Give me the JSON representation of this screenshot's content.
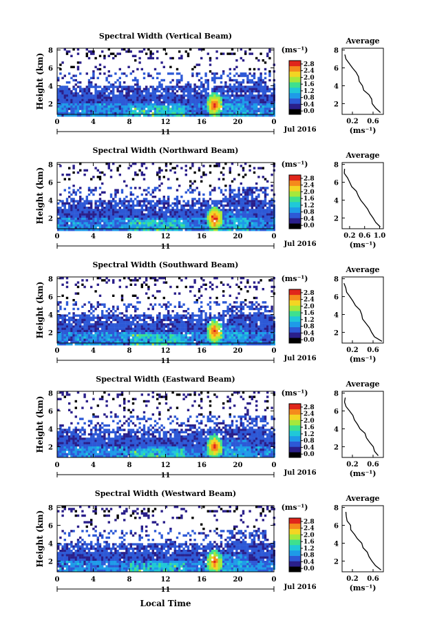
{
  "figure": {
    "xlabel": "Local Time",
    "date_label": "Jul 2016",
    "day_label": "11"
  },
  "colorbar": {
    "unit": "(ms⁻¹)",
    "ticks": [
      "0.0",
      "0.4",
      "0.8",
      "1.2",
      "1.6",
      "2.0",
      "2.4",
      "2.8"
    ],
    "colors": [
      "#000000",
      "#2a1f8a",
      "#2d59d6",
      "#1e9be8",
      "#20c8d8",
      "#3ee08f",
      "#a6e83b",
      "#f3d523",
      "#f58a1c",
      "#e0261b"
    ]
  },
  "chart_data": [
    {
      "type": "heatmap",
      "title": "Spectral Width (Vertical Beam)",
      "ylabel": "Height (km)",
      "x_ticks": [
        "0",
        "4",
        "8",
        "12",
        "16",
        "20",
        "0"
      ],
      "y_ticks": [
        "2",
        "4",
        "6",
        "8"
      ],
      "xlim": [
        0,
        24
      ],
      "ylim": [
        0.8,
        8.2
      ],
      "clim": [
        0,
        2.8
      ],
      "peak": {
        "x": 17.3,
        "y": 2.0,
        "value": 2.6
      },
      "profile": {
        "title": "Average",
        "xlabel": "(ms⁻¹)",
        "x_ticks": [
          "0.2",
          "0.6"
        ],
        "y_ticks": [
          "2",
          "4",
          "6",
          "8"
        ],
        "xlim": [
          0.0,
          0.8
        ],
        "ylim": [
          0.8,
          8.2
        ],
        "height": [
          1.0,
          1.5,
          2.0,
          2.5,
          3.0,
          3.5,
          4.0,
          4.5,
          5.0,
          5.5,
          6.0,
          6.5,
          7.0,
          7.5
        ],
        "width": [
          0.75,
          0.65,
          0.6,
          0.55,
          0.5,
          0.44,
          0.4,
          0.35,
          0.3,
          0.25,
          0.18,
          0.12,
          0.08,
          0.05
        ]
      }
    },
    {
      "type": "heatmap",
      "title": "Spectral Width (Northward Beam)",
      "ylabel": "Height (km)",
      "x_ticks": [
        "0",
        "4",
        "8",
        "12",
        "16",
        "20",
        "0"
      ],
      "y_ticks": [
        "2",
        "4",
        "6",
        "8"
      ],
      "xlim": [
        0,
        24
      ],
      "ylim": [
        0.8,
        8.2
      ],
      "clim": [
        0,
        2.8
      ],
      "peak": {
        "x": 17.3,
        "y": 2.0,
        "value": 2.7
      },
      "profile": {
        "title": "Average",
        "xlabel": "(ms⁻¹)",
        "x_ticks": [
          "0.2",
          "0.6",
          "1.0"
        ],
        "y_ticks": [
          "2",
          "4",
          "6",
          "8"
        ],
        "xlim": [
          0.0,
          1.1
        ],
        "ylim": [
          0.8,
          8.2
        ],
        "height": [
          1.0,
          1.5,
          2.0,
          2.5,
          3.0,
          3.5,
          4.0,
          4.5,
          5.0,
          5.5,
          6.0,
          6.5,
          7.0,
          7.5
        ],
        "width": [
          1.0,
          0.92,
          0.82,
          0.74,
          0.68,
          0.6,
          0.52,
          0.45,
          0.38,
          0.28,
          0.2,
          0.14,
          0.08,
          0.05
        ]
      }
    },
    {
      "type": "heatmap",
      "title": "Spectral Width (Southward Beam)",
      "ylabel": "Height (km)",
      "x_ticks": [
        "0",
        "4",
        "8",
        "12",
        "16",
        "20",
        "0"
      ],
      "y_ticks": [
        "2",
        "4",
        "6",
        "8"
      ],
      "xlim": [
        0,
        24
      ],
      "ylim": [
        0.8,
        8.2
      ],
      "clim": [
        0,
        2.8
      ],
      "peak": {
        "x": 17.3,
        "y": 2.2,
        "value": 2.6
      },
      "profile": {
        "title": "Average",
        "xlabel": "(ms⁻¹)",
        "x_ticks": [
          "0.2",
          "0.6"
        ],
        "y_ticks": [
          "2",
          "4",
          "6",
          "8"
        ],
        "xlim": [
          0.0,
          0.8
        ],
        "ylim": [
          0.8,
          8.2
        ],
        "height": [
          1.0,
          1.5,
          2.0,
          2.5,
          3.0,
          3.5,
          4.0,
          4.5,
          5.0,
          5.5,
          6.0,
          6.5,
          7.0,
          7.5
        ],
        "width": [
          0.76,
          0.64,
          0.58,
          0.52,
          0.48,
          0.42,
          0.38,
          0.33,
          0.28,
          0.22,
          0.16,
          0.11,
          0.07,
          0.05
        ]
      }
    },
    {
      "type": "heatmap",
      "title": "Spectral Width (Eastward Beam)",
      "ylabel": "Height (km)",
      "x_ticks": [
        "0",
        "4",
        "8",
        "12",
        "16",
        "20",
        "0"
      ],
      "y_ticks": [
        "2",
        "4",
        "6",
        "8"
      ],
      "xlim": [
        0,
        24
      ],
      "ylim": [
        0.8,
        8.2
      ],
      "clim": [
        0,
        2.8
      ],
      "peak": {
        "x": 17.3,
        "y": 2.1,
        "value": 2.6
      },
      "profile": {
        "title": "Average",
        "xlabel": "(ms⁻¹)",
        "x_ticks": [
          "0.2",
          "0.6"
        ],
        "y_ticks": [
          "2",
          "4",
          "6",
          "8"
        ],
        "xlim": [
          0.0,
          0.8
        ],
        "ylim": [
          0.8,
          8.2
        ],
        "height": [
          1.0,
          1.5,
          2.0,
          2.5,
          3.0,
          3.5,
          4.0,
          4.5,
          5.0,
          5.5,
          6.0,
          6.5,
          7.0,
          7.5
        ],
        "width": [
          0.72,
          0.63,
          0.58,
          0.52,
          0.46,
          0.42,
          0.37,
          0.32,
          0.26,
          0.2,
          0.14,
          0.1,
          0.07,
          0.05
        ]
      }
    },
    {
      "type": "heatmap",
      "title": "Spectral Width (Westward Beam)",
      "ylabel": "Height (km)",
      "x_ticks": [
        "0",
        "4",
        "8",
        "12",
        "16",
        "20",
        "0"
      ],
      "y_ticks": [
        "2",
        "4",
        "6",
        "8"
      ],
      "xlim": [
        0,
        24
      ],
      "ylim": [
        0.8,
        8.2
      ],
      "clim": [
        0,
        2.8
      ],
      "peak": {
        "x": 17.3,
        "y": 2.0,
        "value": 2.6
      },
      "profile": {
        "title": "Average",
        "xlabel": "(ms⁻¹)",
        "x_ticks": [
          "0.2",
          "0.6"
        ],
        "y_ticks": [
          "2",
          "4",
          "6",
          "8"
        ],
        "xlim": [
          0.0,
          0.8
        ],
        "ylim": [
          0.8,
          8.2
        ],
        "height": [
          1.0,
          1.5,
          2.0,
          2.5,
          3.0,
          3.5,
          4.0,
          4.5,
          5.0,
          5.5,
          6.0,
          6.5,
          7.0,
          7.5
        ],
        "width": [
          0.74,
          0.65,
          0.58,
          0.52,
          0.47,
          0.42,
          0.36,
          0.3,
          0.25,
          0.19,
          0.14,
          0.1,
          0.07,
          0.05
        ]
      }
    }
  ]
}
